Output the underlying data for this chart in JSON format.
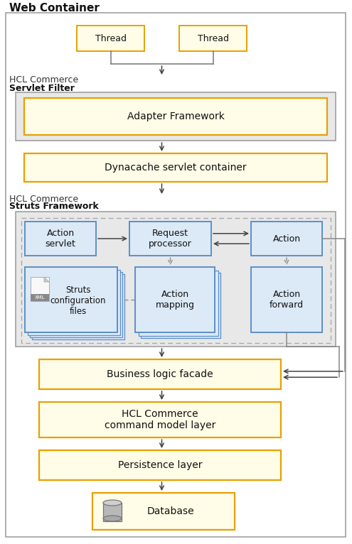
{
  "fig_width": 4.95,
  "fig_height": 7.66,
  "dpi": 100,
  "bg_color": "#ffffff",
  "colors": {
    "yellow_fill": "#fffde7",
    "yellow_border": "#e8a000",
    "blue_fill": "#dce9f7",
    "blue_border": "#5b8fc9",
    "gray_fill": "#e8e8e8",
    "gray_border": "#999999",
    "outer_border": "#999999",
    "arrow_dark": "#444444",
    "arrow_gray": "#888888",
    "text_dark": "#111111",
    "text_mid": "#333333"
  },
  "labels": {
    "web_container": "Web Container",
    "hcl_servlet": "HCL Commerce",
    "servlet_filter": "Servlet Filter",
    "hcl_struts": "HCL Commerce",
    "struts_framework": "Struts Framework",
    "thread1": "Thread",
    "thread2": "Thread",
    "adapter": "Adapter Framework",
    "dynacache": "Dynacache servlet container",
    "action_servlet": "Action\nservlet",
    "request_processor": "Request\nprocessor",
    "action": "Action",
    "struts_config": "Struts\nconfiguration\nfiles",
    "action_mapping": "Action\nmapping",
    "action_forward": "Action\nforward",
    "business_logic": "Business logic facade",
    "hcl_command": "HCL Commerce\ncommand model layer",
    "persistence": "Persistence layer",
    "database": "Database",
    "xml": "XML"
  }
}
